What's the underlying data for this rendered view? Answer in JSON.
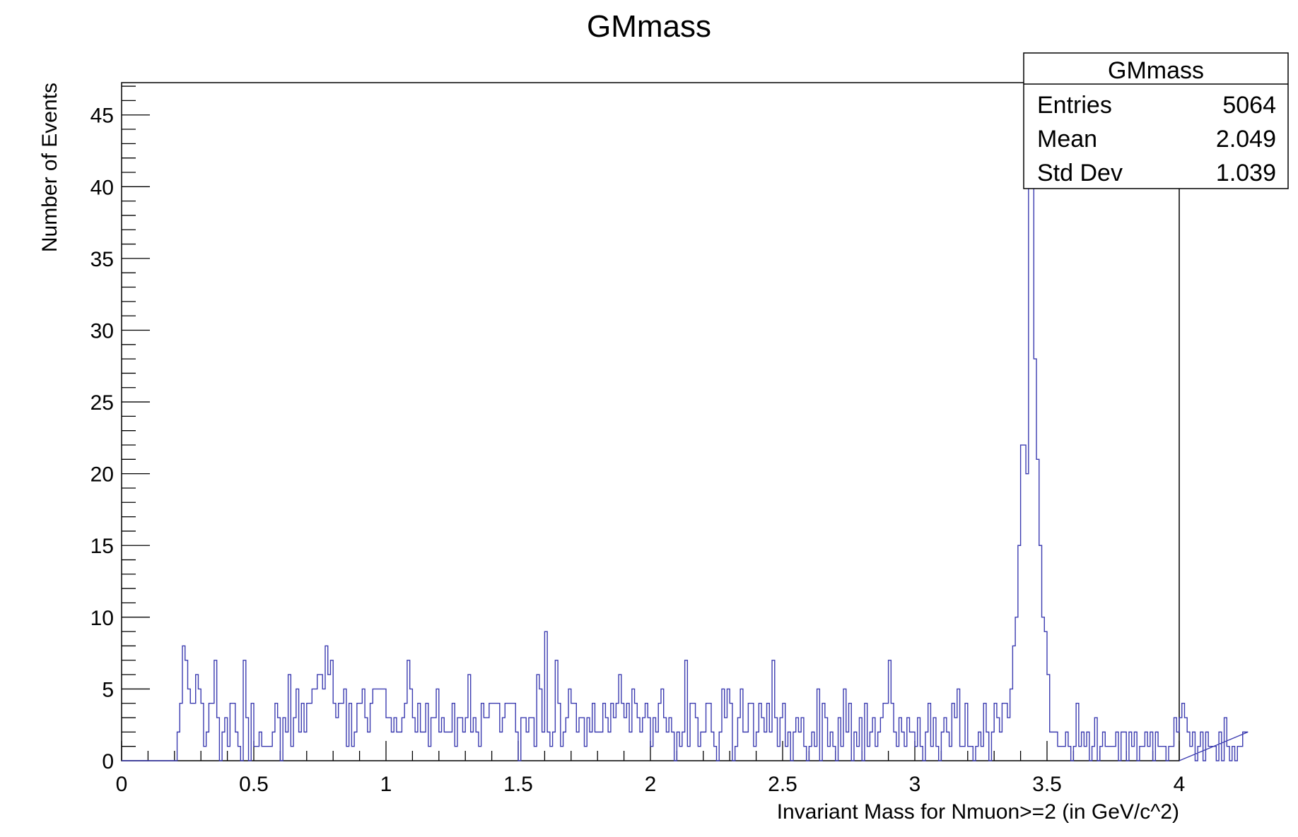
{
  "colors": {
    "histogram_line": "#3b3bb0",
    "frame": "#000000",
    "background": "#ffffff"
  },
  "chart_data": {
    "type": "histogram",
    "title": "GMmass",
    "xlabel": "Invariant Mass for Nmuon>=2 (in GeV/c^2)",
    "ylabel": "Number of Events",
    "xlim": [
      0,
      4
    ],
    "ylim": [
      0,
      47.25
    ],
    "bin_width": 0.01,
    "x_ticks": [
      "0",
      "0.5",
      "1",
      "1.5",
      "2",
      "2.5",
      "3",
      "3.5",
      "4"
    ],
    "y_ticks": [
      "0",
      "5",
      "10",
      "15",
      "20",
      "25",
      "30",
      "35",
      "40",
      "45"
    ],
    "x_tick_values": [
      0,
      0.5,
      1,
      1.5,
      2,
      2.5,
      3,
      3.5,
      4
    ],
    "y_tick_values": [
      0,
      5,
      10,
      15,
      20,
      25,
      30,
      35,
      40,
      45
    ],
    "counts": [
      0,
      0,
      0,
      0,
      0,
      0,
      0,
      0,
      0,
      0,
      0,
      0,
      0,
      0,
      0,
      0,
      0,
      0,
      0,
      0,
      0,
      2,
      4,
      8,
      7,
      5,
      4,
      4,
      6,
      5,
      4,
      1,
      2,
      4,
      4,
      7,
      3,
      0,
      2,
      3,
      1,
      4,
      4,
      2,
      1,
      0,
      7,
      3,
      0,
      4,
      1,
      1,
      2,
      1,
      1,
      1,
      1,
      2,
      4,
      3,
      0,
      3,
      2,
      6,
      1,
      3,
      5,
      2,
      4,
      2,
      4,
      4,
      5,
      5,
      6,
      6,
      5,
      8,
      6,
      7,
      4,
      3,
      4,
      4,
      5,
      1,
      4,
      1,
      2,
      4,
      4,
      5,
      3,
      2,
      4,
      5,
      5,
      5,
      5,
      5,
      3,
      3,
      2,
      3,
      2,
      2,
      3,
      4,
      7,
      5,
      3,
      2,
      4,
      2,
      2,
      4,
      1,
      3,
      3,
      5,
      2,
      3,
      2,
      2,
      2,
      4,
      1,
      3,
      3,
      2,
      3,
      6,
      2,
      3,
      2,
      1,
      4,
      3,
      3,
      4,
      4,
      4,
      4,
      2,
      3,
      4,
      4,
      4,
      4,
      2,
      0,
      3,
      3,
      2,
      3,
      3,
      1,
      6,
      5,
      2,
      9,
      2,
      1,
      2,
      7,
      4,
      1,
      2,
      3,
      5,
      4,
      4,
      2,
      3,
      3,
      1,
      3,
      2,
      4,
      2,
      2,
      2,
      4,
      3,
      2,
      4,
      3,
      4,
      6,
      4,
      3,
      4,
      2,
      5,
      4,
      3,
      2,
      3,
      4,
      3,
      1,
      3,
      2,
      4,
      5,
      3,
      2,
      3,
      2,
      0,
      2,
      1,
      2,
      7,
      1,
      4,
      4,
      3,
      1,
      2,
      2,
      4,
      4,
      2,
      1,
      0,
      2,
      5,
      3,
      5,
      4,
      0,
      1,
      3,
      5,
      2,
      2,
      4,
      4,
      1,
      2,
      4,
      3,
      2,
      4,
      2,
      7,
      3,
      1,
      3,
      4,
      1,
      2,
      0,
      2,
      3,
      2,
      3,
      1,
      0,
      1,
      2,
      1,
      5,
      0,
      4,
      3,
      1,
      2,
      1,
      0,
      3,
      1,
      5,
      2,
      4,
      0,
      2,
      1,
      3,
      0,
      4,
      1,
      2,
      3,
      1,
      2,
      3,
      4,
      4,
      7,
      4,
      2,
      1,
      3,
      2,
      1,
      3,
      2,
      2,
      1,
      3,
      1,
      0,
      2,
      4,
      1,
      3,
      1,
      0,
      2,
      3,
      2,
      1,
      4,
      3,
      5,
      1,
      1,
      4,
      1,
      1,
      0,
      1,
      2,
      1,
      4,
      2,
      0,
      2,
      4,
      3,
      2,
      4,
      4,
      3,
      5,
      8,
      10,
      15,
      22,
      22,
      20,
      40,
      45,
      28,
      21,
      15,
      10,
      9,
      6,
      2,
      2,
      2,
      1,
      1,
      1,
      2,
      1,
      0,
      1,
      4,
      1,
      2,
      1,
      2,
      0,
      1,
      3,
      0,
      1,
      2,
      1,
      1,
      1,
      1,
      2,
      0,
      2,
      2,
      0,
      2,
      1,
      2,
      0,
      1,
      1,
      2,
      1,
      2,
      0,
      2,
      1,
      1,
      1,
      0,
      1,
      1,
      3,
      2,
      3,
      4,
      3,
      2,
      1,
      2,
      0,
      1,
      2,
      0,
      2,
      1,
      1,
      1,
      0,
      2,
      0,
      3,
      1,
      0,
      1,
      0,
      1,
      1,
      2,
      2
    ]
  },
  "stats_box": {
    "title": "GMmass",
    "rows": [
      {
        "label": "Entries",
        "value": "5064"
      },
      {
        "label": "Mean",
        "value": "2.049"
      },
      {
        "label": "Std Dev",
        "value": "1.039"
      }
    ]
  }
}
